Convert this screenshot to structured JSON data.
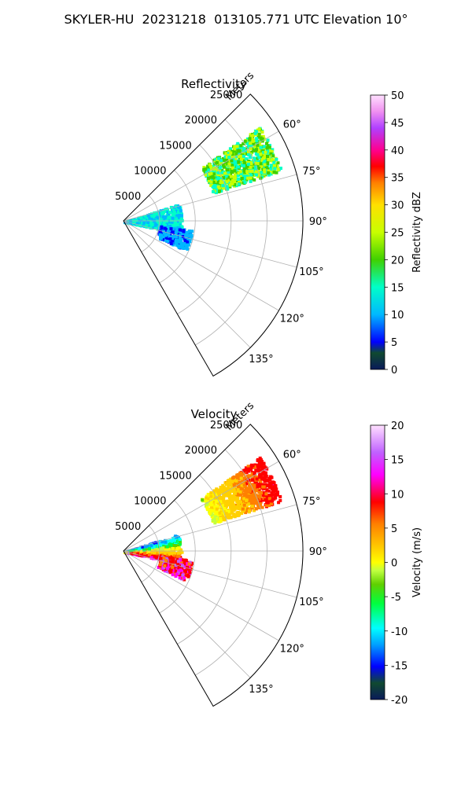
{
  "figure": {
    "title": "SKYLER-HU  20231218  013105.771 UTC Elevation 10°"
  },
  "panels": [
    {
      "title": "Reflectivity",
      "range_label": "Meters",
      "range_ticks": [
        "5000",
        "10000",
        "15000",
        "20000",
        "25000"
      ],
      "azimuth_ticks": [
        "60°",
        "75°",
        "90°",
        "105°",
        "120°",
        "135°"
      ],
      "colorbar": {
        "label": "Reflectivity dBZ",
        "ticks": [
          "0",
          "5",
          "10",
          "15",
          "20",
          "25",
          "30",
          "35",
          "40",
          "45",
          "50"
        ]
      }
    },
    {
      "title": "Velocity",
      "range_label": "Meters",
      "range_ticks": [
        "5000",
        "10000",
        "15000",
        "20000",
        "25000"
      ],
      "azimuth_ticks": [
        "60°",
        "75°",
        "90°",
        "105°",
        "120°",
        "135°"
      ],
      "colorbar": {
        "label": "Velocity (m/s)",
        "ticks": [
          "-20",
          "-15",
          "-10",
          "-5",
          "0",
          "5",
          "10",
          "15",
          "20"
        ]
      }
    }
  ],
  "chart_data": [
    {
      "type": "heatmap",
      "title": "Reflectivity",
      "projection": "polar sector",
      "azimuth_range_deg": [
        45,
        150
      ],
      "range_lim_m": [
        0,
        25000
      ],
      "grid": true,
      "colormap": "NWS reflectivity",
      "clim": [
        0,
        50
      ],
      "colorbar_label": "Reflectivity dBZ",
      "echo_regions": [
        {
          "az_deg": [
            55,
            72
          ],
          "range_m": [
            13000,
            23000
          ],
          "value_range": [
            15,
            30
          ]
        },
        {
          "az_deg": [
            72,
            102
          ],
          "range_m": [
            0,
            8000
          ],
          "value_range": [
            10,
            20
          ]
        },
        {
          "az_deg": [
            97,
            115
          ],
          "range_m": [
            5000,
            9500
          ],
          "value_range": [
            8,
            14
          ]
        }
      ]
    },
    {
      "type": "heatmap",
      "title": "Velocity",
      "projection": "polar sector",
      "azimuth_range_deg": [
        45,
        150
      ],
      "range_lim_m": [
        0,
        25000
      ],
      "grid": true,
      "colormap": "velocity",
      "clim": [
        -20,
        20
      ],
      "colorbar_label": "Velocity (m/s)",
      "echo_regions": [
        {
          "az_deg": [
            55,
            72
          ],
          "range_m": [
            13000,
            23000
          ],
          "value_range": [
            0,
            12
          ]
        },
        {
          "az_deg": [
            72,
            102
          ],
          "range_m": [
            0,
            8000
          ],
          "value_range": [
            -12,
            15
          ]
        },
        {
          "az_deg": [
            97,
            115
          ],
          "range_m": [
            5000,
            9500
          ],
          "value_range": [
            8,
            18
          ]
        }
      ]
    }
  ]
}
